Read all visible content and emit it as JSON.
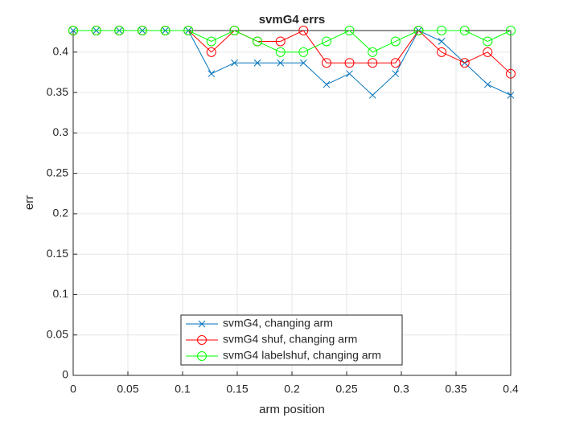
{
  "chart_data": {
    "type": "line",
    "title": "svmG4 errs",
    "xlabel": "arm position",
    "ylabel": "err",
    "x": [
      0,
      0.0211,
      0.0421,
      0.0632,
      0.0842,
      0.1053,
      0.1263,
      0.1474,
      0.1684,
      0.1895,
      0.2105,
      0.2316,
      0.2526,
      0.2737,
      0.2947,
      0.3158,
      0.3368,
      0.3579,
      0.3789,
      0.4
    ],
    "series": [
      {
        "name": "svmG4, changing arm",
        "color": "#0072bd",
        "marker": "x",
        "values": [
          0.4267,
          0.4267,
          0.4267,
          0.4267,
          0.4267,
          0.4267,
          0.3733,
          0.3867,
          0.3867,
          0.3867,
          0.3867,
          0.36,
          0.3733,
          0.3467,
          0.3733,
          0.4267,
          0.4133,
          0.3867,
          0.36,
          0.3467
        ]
      },
      {
        "name": "svmG4 shuf, changing arm",
        "color": "#ff0000",
        "marker": "o",
        "values": [
          0.4267,
          0.4267,
          0.4267,
          0.4267,
          0.4267,
          0.4267,
          0.4,
          0.4267,
          0.4133,
          0.4133,
          0.4267,
          0.3867,
          0.3867,
          0.3867,
          0.3867,
          0.4267,
          0.4,
          0.3867,
          0.4,
          0.3733
        ]
      },
      {
        "name": "svmG4 labelshuf, changing arm",
        "color": "#00ff00",
        "marker": "o",
        "values": [
          0.4267,
          0.4267,
          0.4267,
          0.4267,
          0.4267,
          0.4267,
          0.4133,
          0.4267,
          0.4133,
          0.4,
          0.4,
          0.4133,
          0.4267,
          0.4,
          0.4133,
          0.4267,
          0.4267,
          0.4267,
          0.4133,
          0.4267
        ]
      }
    ],
    "xlim": [
      0,
      0.4
    ],
    "xticks": [
      0,
      0.05,
      0.1,
      0.15,
      0.2,
      0.25,
      0.3,
      0.35,
      0.4
    ],
    "ylim": [
      0,
      0.4267
    ],
    "yticks": [
      0,
      0.05,
      0.1,
      0.15,
      0.2,
      0.25,
      0.3,
      0.35,
      0.4
    ],
    "grid": true,
    "legend": "bottom"
  }
}
